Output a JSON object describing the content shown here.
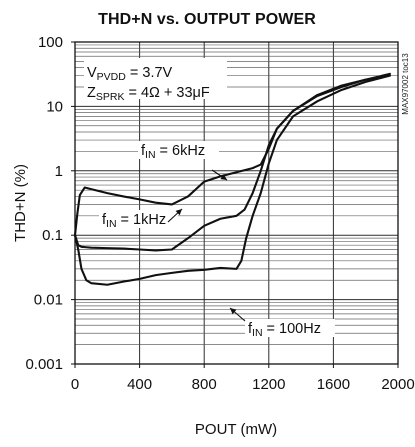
{
  "chart_data": {
    "type": "line",
    "title": "THD+N vs. OUTPUT POWER",
    "xlabel": "POUT (mW)",
    "ylabel": "THD+N (%)",
    "x_ticks": [
      0,
      400,
      800,
      1200,
      1600,
      2000
    ],
    "y_ticks": [
      "0.001",
      "0.01",
      "0.1",
      "1",
      "10",
      "100"
    ],
    "xlim": [
      0,
      2000
    ],
    "ylim": [
      0.001,
      100
    ],
    "y_scale": "log",
    "grid": true,
    "watermark": "MAX97002 toc13",
    "conditions": [
      {
        "text": "VPVDD = 3.7V"
      },
      {
        "text": "ZSPRK = 4Ω + 33μF"
      }
    ],
    "series": [
      {
        "name": "fIN = 6kHz",
        "x": [
          0,
          15,
          30,
          60,
          100,
          200,
          300,
          400,
          500,
          600,
          700,
          800,
          900,
          1000,
          1100,
          1150,
          1200,
          1250,
          1350,
          1500,
          1650,
          1800,
          1900
        ],
        "y": [
          0.1,
          0.22,
          0.42,
          0.55,
          0.52,
          0.45,
          0.4,
          0.36,
          0.32,
          0.3,
          0.4,
          0.68,
          0.82,
          0.95,
          1.1,
          1.25,
          2.2,
          4.5,
          8.5,
          15,
          21,
          26,
          28
        ]
      },
      {
        "name": "fIN = 1kHz",
        "x": [
          0,
          20,
          40,
          70,
          100,
          200,
          300,
          400,
          500,
          600,
          700,
          800,
          900,
          1000,
          1050,
          1100,
          1150,
          1200,
          1250,
          1350,
          1500,
          1650,
          1800,
          1950
        ],
        "y": [
          0.1,
          0.07,
          0.066,
          0.065,
          0.064,
          0.063,
          0.062,
          0.06,
          0.058,
          0.06,
          0.09,
          0.14,
          0.18,
          0.2,
          0.25,
          0.45,
          1.0,
          2.5,
          4.5,
          8.5,
          14.5,
          20,
          26,
          32
        ]
      },
      {
        "name": "fIN = 100Hz",
        "x": [
          0,
          20,
          40,
          70,
          100,
          200,
          300,
          400,
          500,
          600,
          700,
          800,
          900,
          1000,
          1030,
          1060,
          1100,
          1150,
          1200,
          1250,
          1350,
          1500,
          1650,
          1800,
          1950
        ],
        "y": [
          0.1,
          0.06,
          0.03,
          0.02,
          0.018,
          0.017,
          0.019,
          0.021,
          0.024,
          0.026,
          0.028,
          0.029,
          0.031,
          0.03,
          0.04,
          0.09,
          0.2,
          0.45,
          1.3,
          3.0,
          7.0,
          12.0,
          18.0,
          24.0,
          30.0
        ]
      }
    ],
    "annotations": [
      {
        "text": "fIN = 6kHz"
      },
      {
        "text": "fIN = 1kHz"
      },
      {
        "text": "fIN = 100Hz"
      }
    ]
  }
}
